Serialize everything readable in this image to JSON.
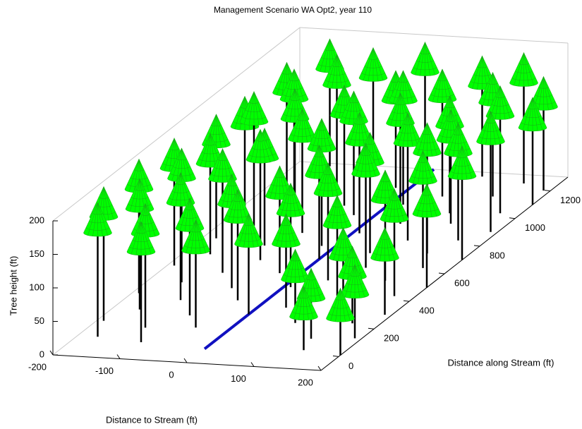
{
  "chart_data": {
    "type": "forest3d",
    "title": "Management Scenario WA Opt2, year 110",
    "xlabel": "Distance to Stream (ft)",
    "ylabel": "Distance along Stream (ft)",
    "zlabel": "Tree height (ft)",
    "xlim": [
      -200,
      200
    ],
    "ylim": [
      -100,
      1300
    ],
    "zlim": [
      0,
      200
    ],
    "xticks": [
      -200,
      -100,
      0,
      100,
      200
    ],
    "yticks": [
      0,
      200,
      400,
      600,
      800,
      1000,
      1200
    ],
    "zticks": [
      0,
      50,
      100,
      150,
      200
    ],
    "crown_color": "#00ff00",
    "trunk_color": "#000000",
    "stream": {
      "color": "#1010c0",
      "x": [
        0,
        0
      ],
      "y": [
        0,
        1300
      ]
    },
    "trees": {
      "x": [
        -150,
        -80,
        0,
        80,
        150,
        190,
        -180,
        -100,
        -20,
        60,
        130,
        200,
        -140,
        -60,
        20,
        100,
        170,
        -190,
        -110,
        -30,
        50,
        120,
        190,
        -150,
        -70,
        10,
        90,
        160,
        -180,
        -100,
        -20,
        60,
        140,
        200,
        -160,
        -80,
        0,
        80,
        160,
        -190,
        -110,
        -30,
        50,
        130,
        200,
        -150,
        -70,
        10,
        90,
        170,
        -190,
        -120,
        -40,
        40,
        120,
        190,
        -160,
        -80,
        0,
        80,
        160,
        -190,
        -120,
        -50,
        130,
        190,
        -170,
        -100,
        140,
        200
      ],
      "y": [
        1280,
        1260,
        1250,
        1270,
        1240,
        1200,
        1150,
        1130,
        1160,
        1120,
        1140,
        1100,
        1040,
        1020,
        1050,
        1010,
        1030,
        950,
        930,
        960,
        920,
        940,
        900,
        850,
        820,
        840,
        810,
        830,
        750,
        720,
        740,
        710,
        730,
        700,
        640,
        620,
        650,
        610,
        630,
        550,
        520,
        540,
        510,
        530,
        500,
        440,
        420,
        450,
        410,
        430,
        350,
        320,
        340,
        310,
        330,
        300,
        240,
        220,
        250,
        210,
        230,
        150,
        120,
        140,
        110,
        130,
        40,
        20,
        30,
        10
      ],
      "z": [
        190,
        185,
        200,
        180,
        195,
        170,
        180,
        200,
        175,
        190,
        185,
        160,
        195,
        180,
        200,
        175,
        190,
        170,
        190,
        185,
        195,
        170,
        180,
        200,
        185,
        180,
        190,
        175,
        185,
        175,
        190,
        180,
        195,
        170,
        180,
        195,
        170,
        185,
        175,
        190,
        185,
        160,
        175,
        165,
        155,
        200,
        170,
        155,
        150,
        160,
        200,
        190,
        165,
        140,
        120,
        130,
        195,
        175,
        150,
        110,
        115,
        200,
        185,
        160,
        105,
        110,
        200,
        180,
        95,
        100
      ]
    }
  }
}
